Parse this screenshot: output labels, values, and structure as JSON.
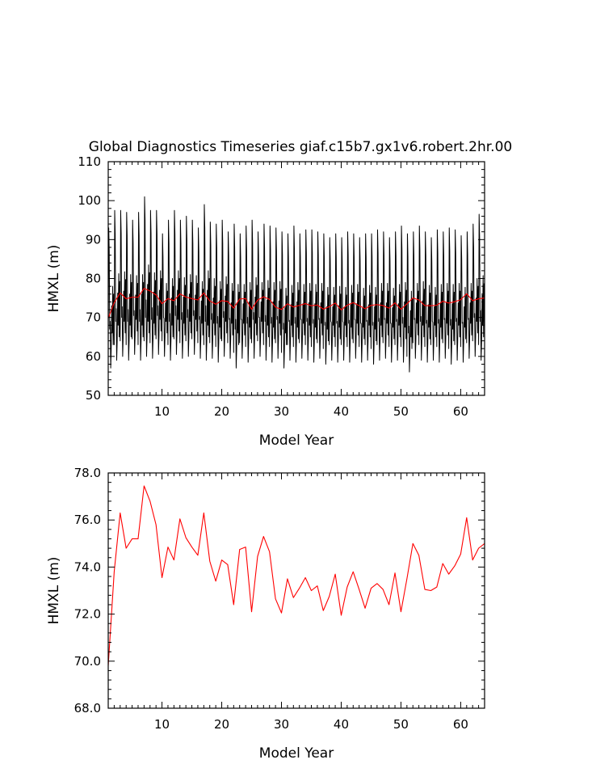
{
  "title": "Global Diagnostics Timeseries giaf.c15b7.gx1v6.robert.2hr.00",
  "colors": {
    "monthly": "#000000",
    "annual": "#ff0000",
    "axis": "#000000"
  },
  "chart_data": [
    {
      "type": "line",
      "title": "Global Diagnostics Timeseries giaf.c15b7.gx1v6.robert.2hr.00",
      "xlabel": "Model Year",
      "ylabel": "HMXL (m)",
      "xlim": [
        1,
        64
      ],
      "ylim": [
        50,
        110
      ],
      "xticks": [
        10,
        20,
        30,
        40,
        50,
        60
      ],
      "xtick_labels": [
        "10",
        "20",
        "30",
        "40",
        "50",
        "60"
      ],
      "yticks": [
        50,
        60,
        70,
        80,
        90,
        100,
        110
      ],
      "ytick_labels": [
        "50",
        "60",
        "70",
        "80",
        "90",
        "100",
        "110"
      ],
      "grid": false,
      "series": [
        {
          "style": "monthly seasonal cycle",
          "color": "#000000",
          "annual_peaks": [
            93.0,
            97.5,
            97.5,
            97.0,
            95.0,
            97.0,
            101.0,
            97.5,
            97.5,
            91.5,
            95.0,
            97.5,
            95.0,
            96.0,
            95.0,
            93.0,
            99.0,
            94.5,
            94.0,
            95.0,
            92.0,
            94.0,
            91.5,
            93.5,
            95.0,
            92.0,
            94.0,
            93.5,
            93.0,
            92.0,
            91.5,
            93.5,
            91.5,
            92.5,
            92.5,
            92.0,
            91.5,
            90.5,
            91.5,
            90.5,
            92.0,
            91.5,
            90.5,
            91.5,
            91.5,
            92.5,
            92.0,
            90.5,
            92.0,
            93.5,
            91.5,
            92.0,
            93.5,
            92.0,
            90.5,
            92.5,
            92.0,
            93.0,
            92.5,
            91.0,
            92.0,
            94.0,
            96.5
          ],
          "annual_troughs": [
            57.0,
            59.0,
            60.0,
            59.0,
            60.5,
            59.0,
            60.0,
            59.5,
            60.5,
            60.0,
            59.0,
            60.5,
            59.5,
            60.0,
            60.5,
            59.5,
            59.0,
            59.5,
            58.5,
            60.0,
            59.5,
            57.0,
            59.5,
            58.5,
            59.5,
            60.0,
            59.0,
            58.5,
            59.5,
            57.0,
            59.0,
            58.5,
            59.5,
            59.0,
            58.5,
            59.5,
            58.0,
            59.0,
            58.5,
            59.0,
            58.5,
            59.5,
            58.5,
            59.0,
            58.0,
            59.0,
            59.5,
            58.5,
            59.0,
            58.5,
            56.0,
            59.5,
            59.0,
            58.5,
            59.0,
            58.5,
            59.5,
            58.0,
            59.0,
            58.5,
            59.5,
            60.0,
            59.0
          ]
        },
        {
          "style": "annual mean",
          "color": "#ff0000",
          "x": [
            1,
            2,
            3,
            4,
            5,
            6,
            7,
            8,
            9,
            10,
            11,
            12,
            13,
            14,
            15,
            16,
            17,
            18,
            19,
            20,
            21,
            22,
            23,
            24,
            25,
            26,
            27,
            28,
            29,
            30,
            31,
            32,
            33,
            34,
            35,
            36,
            37,
            38,
            39,
            40,
            41,
            42,
            43,
            44,
            45,
            46,
            47,
            48,
            49,
            50,
            51,
            52,
            53,
            54,
            55,
            56,
            57,
            58,
            59,
            60,
            61,
            62,
            63,
            64
          ],
          "values": [
            69.8,
            73.8,
            76.3,
            74.8,
            75.2,
            75.2,
            77.45,
            76.8,
            75.8,
            73.55,
            74.85,
            74.3,
            76.05,
            75.25,
            74.85,
            74.5,
            76.3,
            74.25,
            73.4,
            74.3,
            74.1,
            72.4,
            74.75,
            74.85,
            72.1,
            74.45,
            75.3,
            74.65,
            72.65,
            72.05,
            73.5,
            72.7,
            73.1,
            73.55,
            73.0,
            73.2,
            72.15,
            72.75,
            73.7,
            71.95,
            73.15,
            73.8,
            73.05,
            72.25,
            73.1,
            73.3,
            73.05,
            72.4,
            73.75,
            72.1,
            73.5,
            75.0,
            74.5,
            73.05,
            73.0,
            73.15,
            74.15,
            73.7,
            74.05,
            74.55,
            76.1,
            74.3,
            74.8,
            75.0
          ]
        }
      ]
    },
    {
      "type": "line",
      "xlabel": "Model Year",
      "ylabel": "HMXL (m)",
      "xlim": [
        1,
        64
      ],
      "ylim": [
        68,
        78
      ],
      "xticks": [
        10,
        20,
        30,
        40,
        50,
        60
      ],
      "xtick_labels": [
        "10",
        "20",
        "30",
        "40",
        "50",
        "60"
      ],
      "yticks": [
        68,
        70,
        72,
        74,
        76,
        78
      ],
      "ytick_labels": [
        "68.0",
        "70.0",
        "72.0",
        "74.0",
        "76.0",
        "78.0"
      ],
      "grid": false,
      "series": [
        {
          "color": "#ff0000",
          "x": [
            1,
            2,
            3,
            4,
            5,
            6,
            7,
            8,
            9,
            10,
            11,
            12,
            13,
            14,
            15,
            16,
            17,
            18,
            19,
            20,
            21,
            22,
            23,
            24,
            25,
            26,
            27,
            28,
            29,
            30,
            31,
            32,
            33,
            34,
            35,
            36,
            37,
            38,
            39,
            40,
            41,
            42,
            43,
            44,
            45,
            46,
            47,
            48,
            49,
            50,
            51,
            52,
            53,
            54,
            55,
            56,
            57,
            58,
            59,
            60,
            61,
            62,
            63,
            64
          ],
          "values": [
            69.8,
            73.8,
            76.3,
            74.8,
            75.2,
            75.2,
            77.45,
            76.8,
            75.8,
            73.55,
            74.85,
            74.3,
            76.05,
            75.25,
            74.85,
            74.5,
            76.3,
            74.25,
            73.4,
            74.3,
            74.1,
            72.4,
            74.75,
            74.85,
            72.1,
            74.45,
            75.3,
            74.65,
            72.65,
            72.05,
            73.5,
            72.7,
            73.1,
            73.55,
            73.0,
            73.2,
            72.15,
            72.75,
            73.7,
            71.95,
            73.15,
            73.8,
            73.05,
            72.25,
            73.1,
            73.3,
            73.05,
            72.4,
            73.75,
            72.1,
            73.5,
            75.0,
            74.5,
            73.05,
            73.0,
            73.15,
            74.15,
            73.7,
            74.05,
            74.55,
            76.1,
            74.3,
            74.8,
            75.0
          ]
        }
      ]
    }
  ]
}
